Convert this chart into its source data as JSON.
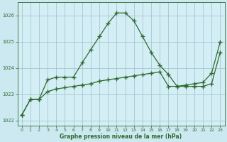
{
  "series1_x": [
    0,
    1,
    2,
    3,
    4,
    5,
    6,
    7,
    8,
    9,
    10,
    11,
    12,
    13,
    14,
    15,
    16,
    17,
    18,
    19,
    20,
    21,
    22,
    23
  ],
  "series1_y": [
    1022.2,
    1022.8,
    1022.8,
    1023.55,
    1023.65,
    1023.65,
    1023.65,
    1024.2,
    1024.7,
    1025.2,
    1025.7,
    1026.1,
    1026.1,
    1025.8,
    1025.2,
    1024.6,
    1024.1,
    1023.75,
    1023.3,
    1023.3,
    1023.3,
    1023.3,
    1023.4,
    1024.6
  ],
  "series2_x": [
    0,
    1,
    2,
    3,
    4,
    5,
    6,
    7,
    8,
    9,
    10,
    11,
    12,
    13,
    14,
    15,
    16,
    17,
    18,
    19,
    20,
    21,
    22,
    23
  ],
  "series2_y": [
    1022.2,
    1022.8,
    1022.8,
    1023.1,
    1023.2,
    1023.25,
    1023.3,
    1023.35,
    1023.4,
    1023.5,
    1023.55,
    1023.6,
    1023.65,
    1023.7,
    1023.75,
    1023.8,
    1023.85,
    1023.3,
    1023.3,
    1023.35,
    1023.4,
    1023.45,
    1023.8,
    1025.0
  ],
  "line_color": "#2d6a2d",
  "bg_color": "#cce8f0",
  "grid_color": "#9bbfc8",
  "plot_bg": "#d4eef5",
  "ylim": [
    1021.8,
    1026.5
  ],
  "yticks": [
    1022,
    1023,
    1024,
    1025,
    1026
  ],
  "xticks": [
    0,
    1,
    2,
    3,
    4,
    5,
    6,
    7,
    8,
    9,
    10,
    11,
    12,
    13,
    14,
    15,
    16,
    17,
    18,
    19,
    20,
    21,
    22,
    23
  ],
  "xlabel": "Graphe pression niveau de la mer (hPa)",
  "xlabel_color": "#2d6a2d",
  "tick_color": "#2d6a2d",
  "marker": "+",
  "marker_size": 4,
  "line_width": 0.9
}
